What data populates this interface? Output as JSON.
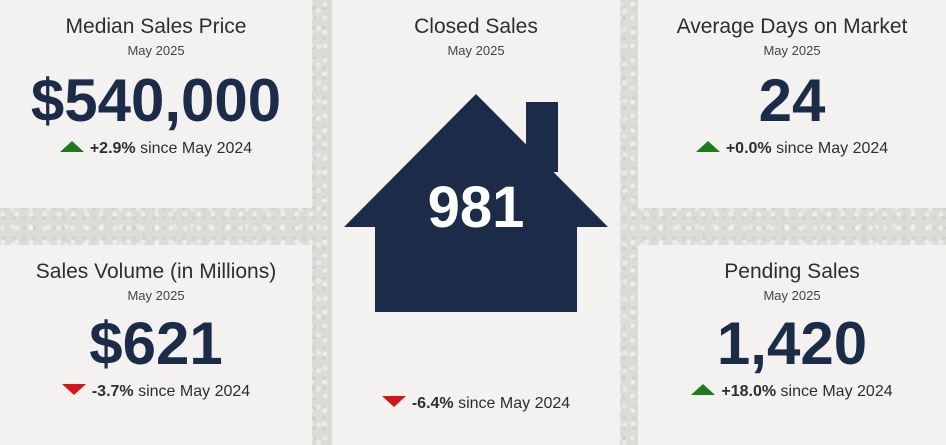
{
  "median_price": {
    "title": "Median Sales Price",
    "period": "May 2025",
    "value": "$540,000",
    "direction": "up",
    "change_pct": "+2.9%",
    "change_text": "since May 2024"
  },
  "sales_volume": {
    "title": "Sales Volume (in Millions)",
    "period": "May 2025",
    "value": "$621",
    "direction": "down",
    "change_pct": "-3.7%",
    "change_text": "since May 2024"
  },
  "closed_sales": {
    "title": "Closed Sales",
    "period": "May 2025",
    "value": "981",
    "direction": "down",
    "change_pct": "-6.4%",
    "change_text": "since May 2024"
  },
  "avg_days": {
    "title": "Average Days on Market",
    "period": "May 2025",
    "value": "24",
    "direction": "up",
    "change_pct": "+0.0%",
    "change_text": "since May 2024"
  },
  "pending_sales": {
    "title": "Pending Sales",
    "period": "May 2025",
    "value": "1,420",
    "direction": "up",
    "change_pct": "+18.0%",
    "change_text": "since May 2024"
  },
  "colors": {
    "primary_navy": "#1c2b47",
    "up_green": "#1d7a1d",
    "down_red": "#d4151b",
    "card_bg": "#f3f2f0"
  },
  "icons": {
    "house": "house-icon",
    "up": "triangle-up-icon",
    "down": "triangle-down-icon"
  }
}
